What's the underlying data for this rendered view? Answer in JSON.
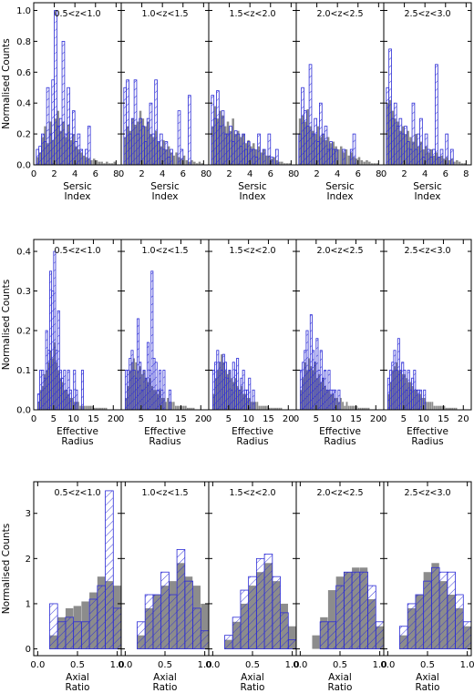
{
  "colors": {
    "grey_hist": "#8c8c8c",
    "hatched_hist": "#2b2bd6"
  },
  "chart_data": [
    {
      "type": "bar",
      "row": 0,
      "ylabel": "Normalised Counts",
      "xlabel": [
        "Sersic",
        "Index"
      ],
      "xlim": [
        0,
        8.5
      ],
      "ylim": [
        0,
        1.05
      ],
      "xticks": [
        0,
        2,
        4,
        6,
        8
      ],
      "yticks": [
        0.0,
        0.2,
        0.4,
        0.6,
        0.8,
        1.0
      ],
      "bin_width": 0.25,
      "panels": [
        {
          "label": "0.5<z<1.0",
          "grey": {
            "start": 0.25,
            "values": [
              0.05,
              0.08,
              0.18,
              0.25,
              0.14,
              0.28,
              0.16,
              0.3,
              0.35,
              0.22,
              0.28,
              0.18,
              0.26,
              0.16,
              0.2,
              0.12,
              0.1,
              0.08,
              0.06,
              0.05,
              0.04,
              0.03,
              0.04,
              0.03,
              0.02,
              0.02,
              0.01,
              0.02,
              0.01,
              0.01,
              0.02
            ]
          },
          "hatch": {
            "start": 0.25,
            "values": [
              0.1,
              0.12,
              0.2,
              0.15,
              0.5,
              0.2,
              0.55,
              1.0,
              0.25,
              0.3,
              0.8,
              0.2,
              0.5,
              0.2,
              0.35,
              0.15,
              0.2,
              0.1,
              0,
              0.1,
              0.25,
              0,
              0,
              0,
              0,
              0,
              0,
              0,
              0,
              0,
              0
            ]
          }
        },
        {
          "label": "1.0<z<1.5",
          "grey": {
            "start": 0.25,
            "values": [
              0.18,
              0.25,
              0.22,
              0.3,
              0.26,
              0.28,
              0.35,
              0.3,
              0.25,
              0.28,
              0.2,
              0.18,
              0.22,
              0.15,
              0.12,
              0.16,
              0.1,
              0.12,
              0.08,
              0.06,
              0.08,
              0.05,
              0.04,
              0.06,
              0.03,
              0.02,
              0.03,
              0.02,
              0.01,
              0.02,
              0.01
            ]
          },
          "hatch": {
            "start": 0.25,
            "values": [
              0.5,
              0.55,
              0.2,
              0.3,
              0.55,
              0.2,
              0.3,
              0.25,
              0.15,
              0.3,
              0.4,
              0.2,
              0.55,
              0.15,
              0.2,
              0.1,
              0.15,
              0.05,
              0.1,
              0,
              0,
              0.35,
              0.1,
              0,
              0,
              0.45,
              0,
              0,
              0,
              0,
              0
            ]
          }
        },
        {
          "label": "1.5<z<2.0",
          "grey": {
            "start": 0.25,
            "values": [
              0.25,
              0.38,
              0.3,
              0.35,
              0.32,
              0.25,
              0.28,
              0.22,
              0.3,
              0.2,
              0.22,
              0.18,
              0.2,
              0.14,
              0.16,
              0.12,
              0.14,
              0.1,
              0.12,
              0.08,
              0.1,
              0.06,
              0.06,
              0.04,
              0.05,
              0.03,
              0.02,
              0.02,
              0.01,
              0.01,
              0.01
            ]
          },
          "hatch": {
            "start": 0.25,
            "values": [
              0.45,
              0.3,
              0.48,
              0.25,
              0.35,
              0.2,
              0.2,
              0.25,
              0.15,
              0.22,
              0.2,
              0.12,
              0.2,
              0.1,
              0.15,
              0.1,
              0.1,
              0.05,
              0.2,
              0,
              0.1,
              0,
              0.2,
              0.05,
              0,
              0.1,
              0,
              0,
              0,
              0,
              0
            ]
          }
        },
        {
          "label": "2.0<z<2.5",
          "grey": {
            "start": 0.25,
            "values": [
              0.3,
              0.32,
              0.28,
              0.36,
              0.25,
              0.22,
              0.2,
              0.25,
              0.18,
              0.2,
              0.16,
              0.18,
              0.14,
              0.15,
              0.12,
              0.1,
              0.12,
              0.08,
              0.1,
              0.06,
              0.08,
              0.05,
              0.04,
              0.05,
              0.03,
              0.02,
              0.03,
              0.02,
              0.01,
              0.01,
              0.01
            ]
          },
          "hatch": {
            "start": 0.25,
            "values": [
              0.2,
              0.5,
              0.35,
              0.25,
              0.65,
              0.2,
              0.3,
              0.15,
              0.4,
              0.2,
              0.25,
              0.1,
              0.15,
              0.1,
              0.1,
              0,
              0,
              0.1,
              0,
              0,
              0.1,
              0.2,
              0,
              0,
              0,
              0,
              0,
              0,
              0,
              0,
              0
            ]
          }
        },
        {
          "label": "2.5<z<3.0",
          "grey": {
            "start": 0.25,
            "values": [
              0.4,
              0.42,
              0.35,
              0.3,
              0.28,
              0.22,
              0.25,
              0.2,
              0.22,
              0.18,
              0.15,
              0.2,
              0.12,
              0.15,
              0.1,
              0.12,
              0.08,
              0.1,
              0.06,
              0.08,
              0.05,
              0.06,
              0.04,
              0.05,
              0.03,
              0.04,
              0.02,
              0.03,
              0.02,
              0.01,
              0.01
            ]
          },
          "hatch": {
            "start": 0.25,
            "values": [
              0.5,
              0.75,
              0.3,
              0.4,
              0.25,
              0.3,
              0.2,
              0.25,
              0.15,
              0.1,
              0.4,
              0.1,
              0.2,
              0.3,
              0.05,
              0.2,
              0.1,
              0.05,
              0.1,
              0.65,
              0.05,
              0.1,
              0,
              0.2,
              0,
              0.1,
              0,
              0,
              0,
              0,
              0
            ]
          }
        }
      ]
    },
    {
      "type": "bar",
      "row": 1,
      "ylabel": "Normalised Counts",
      "xlabel": [
        "Effective",
        "Radius"
      ],
      "xlim": [
        0,
        22
      ],
      "ylim": [
        0,
        0.43
      ],
      "xticks": [
        0,
        5,
        10,
        15,
        20
      ],
      "yticks": [
        0.0,
        0.1,
        0.2,
        0.3,
        0.4
      ],
      "bin_width": 0.5,
      "panels": [
        {
          "label": "0.5<z<1.0",
          "grey": {
            "start": 1,
            "values": [
              0.02,
              0.05,
              0.06,
              0.09,
              0.1,
              0.12,
              0.15,
              0.13,
              0.17,
              0.12,
              0.1,
              0.08,
              0.07,
              0.05,
              0.05,
              0.04,
              0.03,
              0.03,
              0.02,
              0.02,
              0.02,
              0.01,
              0.01,
              0.01,
              0.01,
              0.01,
              0.01,
              0.01,
              0.005,
              0.005,
              0.005,
              0.005,
              0.005,
              0.005,
              0.005
            ]
          },
          "hatch": {
            "start": 1,
            "values": [
              0.04,
              0.1,
              0.1,
              0.08,
              0.2,
              0.15,
              0.35,
              0.3,
              0.4,
              0.15,
              0.25,
              0.1,
              0.08,
              0.1,
              0.05,
              0.1,
              0.05,
              0,
              0.1,
              0.05,
              0,
              0,
              0.1,
              0,
              0,
              0,
              0,
              0,
              0,
              0,
              0,
              0,
              0,
              0,
              0
            ]
          }
        },
        {
          "label": "1.0<z<1.5",
          "grey": {
            "start": 1,
            "values": [
              0.03,
              0.06,
              0.1,
              0.12,
              0.13,
              0.12,
              0.1,
              0.11,
              0.09,
              0.1,
              0.08,
              0.07,
              0.08,
              0.06,
              0.05,
              0.05,
              0.04,
              0.05,
              0.03,
              0.03,
              0.02,
              0.03,
              0.02,
              0.02,
              0.02,
              0.01,
              0.01,
              0.01,
              0.01,
              0.01,
              0.01,
              0.005,
              0.005,
              0.005,
              0.005
            ]
          },
          "hatch": {
            "start": 1,
            "values": [
              0.1,
              0.1,
              0.13,
              0.15,
              0.1,
              0.08,
              0.23,
              0.12,
              0.05,
              0.1,
              0.08,
              0.17,
              0.1,
              0.35,
              0.13,
              0.12,
              0.05,
              0.1,
              0.05,
              0.1,
              0,
              0,
              0.05,
              0,
              0,
              0,
              0,
              0,
              0,
              0,
              0,
              0,
              0,
              0,
              0
            ]
          }
        },
        {
          "label": "1.5<z<2.0",
          "grey": {
            "start": 1,
            "values": [
              0.04,
              0.08,
              0.1,
              0.12,
              0.14,
              0.12,
              0.1,
              0.09,
              0.1,
              0.08,
              0.07,
              0.08,
              0.06,
              0.05,
              0.06,
              0.04,
              0.04,
              0.03,
              0.03,
              0.02,
              0.02,
              0.02,
              0.02,
              0.01,
              0.01,
              0.01,
              0.01,
              0.01,
              0.005,
              0.005,
              0.005,
              0.005,
              0.005,
              0.005,
              0.005
            ]
          },
          "hatch": {
            "start": 1,
            "values": [
              0.1,
              0.12,
              0.15,
              0.12,
              0.1,
              0.14,
              0.12,
              0.08,
              0.1,
              0.05,
              0.12,
              0.1,
              0.13,
              0.05,
              0.08,
              0.1,
              0.05,
              0.05,
              0.08,
              0,
              0.05,
              0,
              0,
              0,
              0,
              0,
              0,
              0,
              0,
              0,
              0,
              0,
              0,
              0,
              0
            ]
          }
        },
        {
          "label": "2.0<z<2.5",
          "grey": {
            "start": 1,
            "values": [
              0.05,
              0.08,
              0.12,
              0.1,
              0.13,
              0.11,
              0.1,
              0.12,
              0.08,
              0.09,
              0.07,
              0.08,
              0.06,
              0.05,
              0.05,
              0.04,
              0.04,
              0.03,
              0.03,
              0.02,
              0.03,
              0.02,
              0.01,
              0.02,
              0.01,
              0.01,
              0.01,
              0.01,
              0.01,
              0.005,
              0.005,
              0.005,
              0.005,
              0.005,
              0.005
            ]
          },
          "hatch": {
            "start": 1,
            "values": [
              0.1,
              0.12,
              0.15,
              0.2,
              0.1,
              0.24,
              0.15,
              0.12,
              0.18,
              0.1,
              0.15,
              0.08,
              0.1,
              0.05,
              0.1,
              0.05,
              0.05,
              0.05,
              0,
              0.05,
              0,
              0,
              0,
              0,
              0,
              0,
              0,
              0,
              0,
              0,
              0,
              0,
              0,
              0,
              0
            ]
          }
        },
        {
          "label": "2.5<z<3.0",
          "grey": {
            "start": 1,
            "values": [
              0.04,
              0.07,
              0.1,
              0.11,
              0.12,
              0.1,
              0.1,
              0.09,
              0.09,
              0.08,
              0.07,
              0.07,
              0.06,
              0.05,
              0.05,
              0.04,
              0.04,
              0.03,
              0.03,
              0.02,
              0.02,
              0.02,
              0.02,
              0.01,
              0.01,
              0.01,
              0.01,
              0.01,
              0.01,
              0.005,
              0.005,
              0.005,
              0.005,
              0.005,
              0.005
            ]
          },
          "hatch": {
            "start": 1,
            "values": [
              0.08,
              0.1,
              0.12,
              0.15,
              0.1,
              0.18,
              0.1,
              0.12,
              0.1,
              0.05,
              0.1,
              0.05,
              0.08,
              0.1,
              0.05,
              0.05,
              0.05,
              0,
              0.05,
              0,
              0,
              0,
              0,
              0,
              0,
              0,
              0,
              0,
              0,
              0,
              0,
              0,
              0,
              0,
              0
            ]
          }
        }
      ]
    },
    {
      "type": "bar",
      "row": 2,
      "ylabel": "Normalised Counts",
      "xlabel": [
        "Axial",
        "Ratio"
      ],
      "xlim": [
        -0.05,
        1.05
      ],
      "ylim": [
        -0.15,
        3.7
      ],
      "xticks": [
        0.0,
        0.5,
        1.0
      ],
      "yticks": [
        0,
        1,
        2,
        3
      ],
      "bin_width": 0.1,
      "panels": [
        {
          "label": "0.5<z<1.0",
          "grey": {
            "start": 0.15,
            "values": [
              0.3,
              0.7,
              0.9,
              0.95,
              1.05,
              1.25,
              1.6,
              1.5,
              1.4
            ]
          },
          "hatch": {
            "start": 0.15,
            "values": [
              1.0,
              0.6,
              0.7,
              0.6,
              0.6,
              1.1,
              1.4,
              3.5,
              0.9
            ]
          }
        },
        {
          "label": "1.0<z<1.5",
          "grey": {
            "start": 0.15,
            "values": [
              0.3,
              0.9,
              1.2,
              1.4,
              1.5,
              1.9,
              1.6,
              1.4,
              1.0
            ]
          },
          "hatch": {
            "start": 0.15,
            "values": [
              0.6,
              1.2,
              1.2,
              1.7,
              1.2,
              2.2,
              1.5,
              0.9,
              0.4
            ]
          }
        },
        {
          "label": "1.5<z<2.0",
          "grey": {
            "start": 0.15,
            "values": [
              0.2,
              0.6,
              1.0,
              1.4,
              1.7,
              1.9,
              1.5,
              1.0,
              0.5
            ]
          },
          "hatch": {
            "start": 0.15,
            "values": [
              0.3,
              0.7,
              1.3,
              1.6,
              2.0,
              2.1,
              1.6,
              0.8,
              0.2
            ]
          }
        },
        {
          "label": "2.0<z<2.5",
          "grey": {
            "start": 0.15,
            "values": [
              0.3,
              0.7,
              1.3,
              1.6,
              1.7,
              1.8,
              1.8,
              1.1,
              0.5
            ]
          },
          "hatch": {
            "start": 0.15,
            "values": [
              0.0,
              0.6,
              0.6,
              1.4,
              1.7,
              1.7,
              1.7,
              1.4,
              0.6
            ]
          }
        },
        {
          "label": "2.5<z<3.0",
          "grey": {
            "start": 0.15,
            "values": [
              0.3,
              0.9,
              1.2,
              1.7,
              1.9,
              1.5,
              1.2,
              0.9,
              0.5
            ]
          },
          "hatch": {
            "start": 0.15,
            "values": [
              0.5,
              1.0,
              1.2,
              1.5,
              1.8,
              1.7,
              1.7,
              1.2,
              0.6
            ]
          }
        }
      ]
    }
  ]
}
